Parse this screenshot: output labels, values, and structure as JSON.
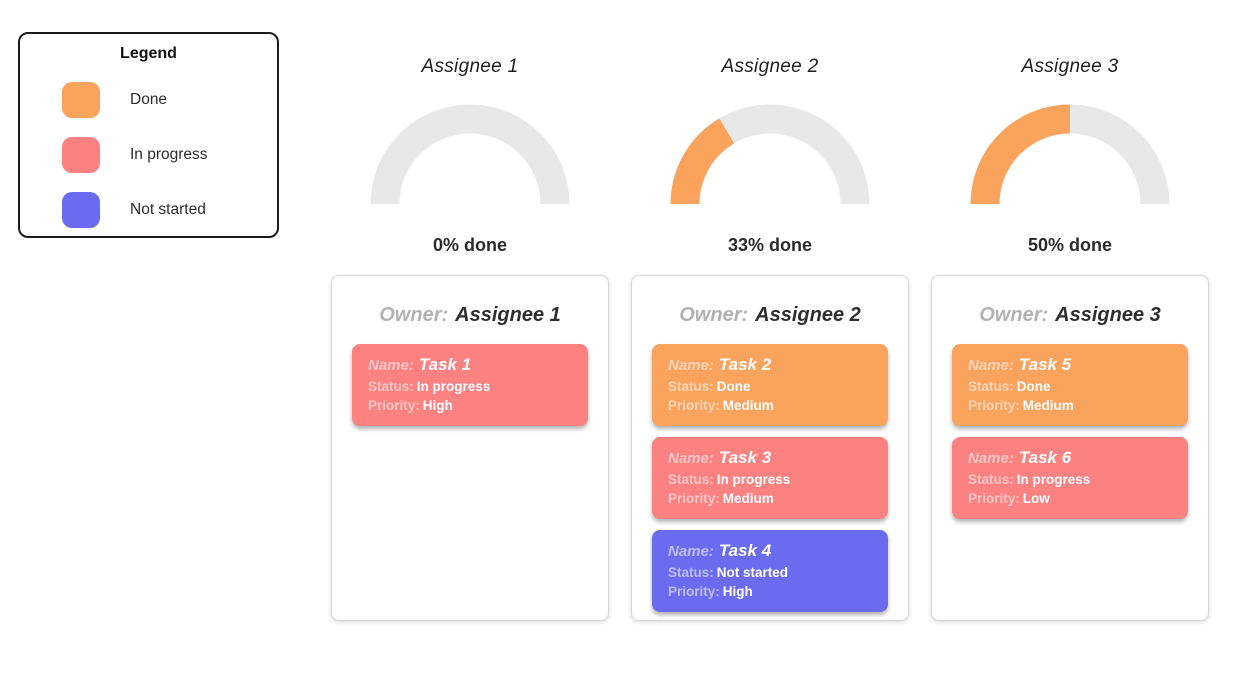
{
  "colors": {
    "done": "#FAA35C",
    "in_progress": "#FC8181",
    "not_started": "#6B6BF0",
    "gauge_track": "#E8E8E8"
  },
  "legend": {
    "title": "Legend",
    "items": [
      {
        "label": "Done",
        "color_key": "done"
      },
      {
        "label": "In progress",
        "color_key": "in_progress"
      },
      {
        "label": "Not started",
        "color_key": "not_started"
      }
    ]
  },
  "chart_data": [
    {
      "type": "gauge",
      "title": "Assignee 1",
      "percent_done": 0,
      "label": "0% done",
      "range": [
        0,
        100
      ],
      "fill_color_key": "done",
      "track_color_key": "gauge_track"
    },
    {
      "type": "gauge",
      "title": "Assignee 2",
      "percent_done": 33,
      "label": "33% done",
      "range": [
        0,
        100
      ],
      "fill_color_key": "done",
      "track_color_key": "gauge_track"
    },
    {
      "type": "gauge",
      "title": "Assignee 3",
      "percent_done": 50,
      "label": "50% done",
      "range": [
        0,
        100
      ],
      "fill_color_key": "done",
      "track_color_key": "gauge_track"
    }
  ],
  "boards": [
    {
      "owner_label": "Owner:",
      "owner": "Assignee 1",
      "tasks": [
        {
          "name_label": "Name:",
          "name": "Task 1",
          "status_label": "Status:",
          "status": "In progress",
          "priority_label": "Priority:",
          "priority": "High",
          "color_key": "in_progress"
        }
      ]
    },
    {
      "owner_label": "Owner:",
      "owner": "Assignee 2",
      "tasks": [
        {
          "name_label": "Name:",
          "name": "Task 2",
          "status_label": "Status:",
          "status": "Done",
          "priority_label": "Priority:",
          "priority": "Medium",
          "color_key": "done"
        },
        {
          "name_label": "Name:",
          "name": "Task 3",
          "status_label": "Status:",
          "status": "In progress",
          "priority_label": "Priority:",
          "priority": "Medium",
          "color_key": "in_progress"
        },
        {
          "name_label": "Name:",
          "name": "Task 4",
          "status_label": "Status:",
          "status": "Not started",
          "priority_label": "Priority:",
          "priority": "High",
          "color_key": "not_started"
        }
      ]
    },
    {
      "owner_label": "Owner:",
      "owner": "Assignee 3",
      "tasks": [
        {
          "name_label": "Name:",
          "name": "Task 5",
          "status_label": "Status:",
          "status": "Done",
          "priority_label": "Priority:",
          "priority": "Medium",
          "color_key": "done"
        },
        {
          "name_label": "Name:",
          "name": "Task 6",
          "status_label": "Status:",
          "status": "In progress",
          "priority_label": "Priority:",
          "priority": "Low",
          "color_key": "in_progress"
        }
      ]
    }
  ]
}
